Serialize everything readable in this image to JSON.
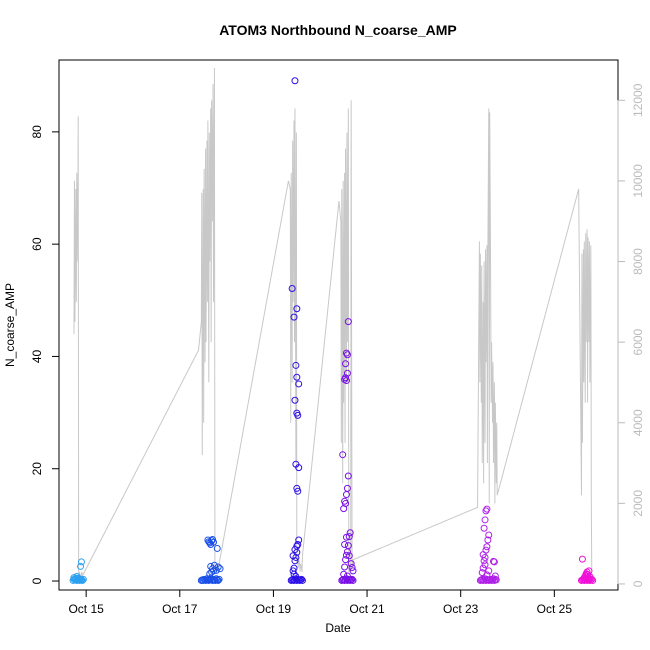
{
  "chart_data": {
    "type": "scatter",
    "title": "ATOM3 Northbound N_coarse_AMP",
    "xlabel": "Date",
    "ylabel": "N_coarse_AMP",
    "x_ticks": [
      {
        "value": 15,
        "label": "Oct 15"
      },
      {
        "value": 17,
        "label": "Oct 17"
      },
      {
        "value": 19,
        "label": "Oct 19"
      },
      {
        "value": 21,
        "label": "Oct 21"
      },
      {
        "value": 23,
        "label": "Oct 23"
      },
      {
        "value": 25,
        "label": "Oct 25"
      }
    ],
    "y_ticks": [
      0,
      20,
      40,
      60,
      80
    ],
    "y2_ticks": [
      0,
      2000,
      4000,
      6000,
      8000,
      10000,
      12000
    ],
    "xlim": [
      14.42,
      26.36
    ],
    "ylim": [
      -1.6,
      92.8
    ],
    "y2lim": [
      -150,
      13000
    ],
    "point_series": [
      {
        "color": "#2aa0f0",
        "x": [
          14.72,
          14.74,
          14.76,
          14.78,
          14.8,
          14.82,
          14.84,
          14.86,
          14.88,
          14.9,
          14.92,
          14.94,
          14.74,
          14.8,
          14.86,
          14.9,
          14.88,
          14.9,
          14.82,
          14.78
        ],
        "y": [
          0.1,
          0.3,
          0.2,
          0.5,
          0.1,
          0.2,
          0.4,
          0.1,
          0.3,
          0.2,
          0.1,
          0.3,
          0.6,
          0.8,
          0.4,
          0.2,
          2.6,
          3.4,
          0.5,
          0.3
        ]
      },
      {
        "color": "#1a50e8",
        "x": [
          17.46,
          17.48,
          17.5,
          17.52,
          17.54,
          17.56,
          17.58,
          17.6,
          17.62,
          17.64,
          17.66,
          17.68,
          17.7,
          17.72,
          17.74,
          17.76,
          17.78,
          17.8,
          17.82,
          17.84,
          17.6,
          17.62,
          17.64,
          17.66,
          17.68,
          17.7,
          17.72,
          17.66,
          17.7,
          17.8,
          17.64,
          17.68,
          17.74,
          17.78,
          17.82,
          17.86,
          17.72
        ],
        "y": [
          0.1,
          0.2,
          0.1,
          0.3,
          0.2,
          0.1,
          0.4,
          0.2,
          0.1,
          0.3,
          0.5,
          0.2,
          0.1,
          0.3,
          0.2,
          0.1,
          0.4,
          0.2,
          0.1,
          0.3,
          7.3,
          7.0,
          6.8,
          6.5,
          7.2,
          7.4,
          6.9,
          2.6,
          2.2,
          5.8,
          1.3,
          1.6,
          2.8,
          1.9,
          2.5,
          2.2,
          1.8
        ]
      },
      {
        "color": "#2c10e8",
        "x": [
          19.38,
          19.4,
          19.42,
          19.44,
          19.46,
          19.48,
          19.5,
          19.52,
          19.54,
          19.56,
          19.58,
          19.6,
          19.62,
          19.42,
          19.44,
          19.46,
          19.48,
          19.5,
          19.52,
          19.54,
          19.48,
          19.5,
          19.52,
          19.54,
          19.5,
          19.52,
          19.46,
          19.5,
          19.54,
          19.48,
          19.5,
          19.44,
          19.4,
          19.46,
          19.48,
          19.42,
          19.46,
          19.5,
          19.44
        ],
        "y": [
          0.1,
          0.2,
          0.3,
          0.1,
          0.2,
          0.4,
          0.1,
          0.3,
          0.2,
          0.1,
          0.2,
          0.3,
          0.1,
          1.8,
          2.3,
          3.6,
          4.2,
          5.1,
          6.5,
          7.3,
          20.8,
          16.5,
          16.0,
          20.2,
          29.9,
          29.5,
          32.2,
          36.3,
          35.1,
          38.4,
          48.5,
          47.0,
          52.1,
          89.1,
          0.8,
          4.5,
          5.6,
          6.2,
          1.2
        ]
      },
      {
        "color": "#7a10e8",
        "x": [
          20.46,
          20.48,
          20.5,
          20.52,
          20.54,
          20.56,
          20.58,
          20.6,
          20.62,
          20.64,
          20.66,
          20.68,
          20.7,
          20.5,
          20.52,
          20.54,
          20.56,
          20.58,
          20.6,
          20.62,
          20.64,
          20.5,
          20.52,
          20.54,
          20.56,
          20.58,
          20.6,
          20.48,
          20.52,
          20.54,
          20.56,
          20.58,
          20.54,
          20.56,
          20.58,
          20.6,
          20.52,
          20.56,
          20.62,
          20.66,
          20.68,
          20.7,
          20.58
        ],
        "y": [
          0.1,
          0.2,
          0.3,
          0.1,
          0.2,
          0.4,
          0.1,
          0.3,
          0.2,
          0.1,
          0.2,
          0.3,
          0.1,
          1.2,
          2.5,
          3.8,
          4.6,
          5.2,
          6.3,
          7.9,
          8.6,
          12.9,
          14.2,
          13.8,
          15.4,
          16.5,
          18.7,
          22.5,
          35.9,
          36.2,
          35.7,
          37.0,
          38.7,
          40.6,
          40.3,
          46.2,
          6.5,
          7.8,
          4.5,
          3.1,
          2.4,
          1.8,
          0.9
        ]
      },
      {
        "color": "#b020e8",
        "x": [
          23.42,
          23.44,
          23.46,
          23.48,
          23.5,
          23.52,
          23.54,
          23.56,
          23.58,
          23.6,
          23.62,
          23.64,
          23.66,
          23.68,
          23.7,
          23.72,
          23.74,
          23.76,
          23.46,
          23.48,
          23.5,
          23.52,
          23.54,
          23.56,
          23.58,
          23.6,
          23.5,
          23.52,
          23.54,
          23.56,
          23.48,
          23.52,
          23.7,
          23.72,
          23.74,
          23.56,
          23.6
        ],
        "y": [
          0.1,
          0.2,
          0.3,
          0.1,
          0.2,
          0.4,
          0.1,
          0.3,
          0.2,
          0.1,
          0.2,
          0.3,
          0.1,
          0.2,
          0.4,
          0.1,
          0.3,
          0.2,
          1.5,
          2.3,
          3.6,
          4.2,
          5.5,
          6.1,
          7.3,
          8.2,
          9.4,
          10.9,
          12.5,
          12.8,
          4.7,
          2.9,
          3.5,
          3.4,
          0.9,
          1.1,
          1.8
        ]
      },
      {
        "color": "#f010d8",
        "x": [
          25.58,
          25.6,
          25.62,
          25.64,
          25.66,
          25.68,
          25.7,
          25.72,
          25.74,
          25.76,
          25.78,
          25.8,
          25.82,
          25.64,
          25.66,
          25.68,
          25.7,
          25.72,
          25.74,
          25.76,
          25.6,
          25.66,
          25.7,
          25.74
        ],
        "y": [
          0.1,
          0.2,
          0.3,
          0.1,
          0.2,
          0.4,
          0.1,
          0.3,
          0.2,
          0.1,
          0.2,
          0.3,
          0.1,
          0.6,
          0.9,
          1.3,
          1.6,
          1.1,
          1.8,
          0.8,
          3.9,
          0.5,
          1.2,
          0.4
        ]
      }
    ],
    "line_series": {
      "color": "#c8c8c8",
      "axis": "right",
      "x": [
        14.74,
        14.75,
        14.76,
        14.78,
        14.79,
        14.8,
        14.82,
        14.83,
        14.84,
        14.86,
        14.87,
        14.88,
        14.9,
        14.91,
        14.92,
        17.4,
        17.46,
        17.47,
        17.48,
        17.5,
        17.51,
        17.52,
        17.54,
        17.55,
        17.56,
        17.58,
        17.59,
        17.6,
        17.62,
        17.63,
        17.64,
        17.66,
        17.67,
        17.68,
        17.7,
        17.71,
        17.72,
        17.74,
        17.75,
        17.76,
        17.78,
        17.79,
        17.8,
        17.82,
        17.83,
        17.84,
        19.32,
        19.36,
        19.37,
        19.38,
        19.4,
        19.41,
        19.42,
        19.44,
        19.45,
        19.46,
        19.48,
        19.49,
        19.5,
        19.52,
        19.53,
        19.54,
        19.56,
        19.57,
        19.58,
        19.6,
        19.61,
        19.62,
        20.4,
        20.44,
        20.45,
        20.46,
        20.48,
        20.49,
        20.5,
        20.52,
        20.53,
        20.54,
        20.56,
        20.57,
        20.58,
        20.6,
        20.61,
        20.62,
        20.64,
        20.65,
        20.66,
        20.68,
        20.69,
        20.7,
        23.36,
        23.4,
        23.41,
        23.42,
        23.44,
        23.45,
        23.46,
        23.48,
        23.49,
        23.5,
        23.52,
        23.53,
        23.54,
        23.56,
        23.57,
        23.58,
        23.6,
        23.61,
        23.62,
        23.64,
        23.65,
        23.66,
        23.68,
        23.69,
        23.7,
        23.72,
        23.73,
        23.74,
        23.76,
        23.77,
        23.78,
        25.52,
        25.58,
        25.59,
        25.6,
        25.62,
        25.63,
        25.64,
        25.66,
        25.67,
        25.68,
        25.7,
        25.71,
        25.72,
        25.74,
        25.75,
        25.76,
        25.78,
        25.79,
        25.8
      ],
      "y": [
        6200,
        10000,
        6500,
        9800,
        7000,
        10200,
        8000,
        11600,
        200,
        300,
        200,
        150,
        250,
        300,
        200,
        5800,
        6500,
        9700,
        3200,
        9800,
        4000,
        10300,
        5500,
        10800,
        6000,
        11000,
        7000,
        11500,
        5000,
        11200,
        8000,
        11800,
        6000,
        12000,
        9000,
        12400,
        7000,
        12800,
        500,
        300,
        400,
        300,
        500,
        400,
        300,
        500,
        10000,
        9800,
        4000,
        10200,
        5000,
        11000,
        7000,
        11500,
        6000,
        11800,
        3000,
        11200,
        500,
        700,
        400,
        600,
        500,
        300,
        500,
        400,
        300,
        700,
        9500,
        9000,
        3500,
        9800,
        2500,
        10000,
        4500,
        10200,
        3500,
        10800,
        5000,
        11200,
        6000,
        11800,
        300,
        400,
        500,
        300,
        12000,
        400,
        500,
        600,
        1900,
        8500,
        5000,
        8200,
        4500,
        7900,
        3000,
        7000,
        2500,
        8000,
        3500,
        8300,
        5500,
        8400,
        3000,
        8200,
        11800,
        2000,
        11700,
        7500,
        4500,
        6000,
        4000,
        5500,
        3000,
        5000,
        2000,
        4500,
        2500,
        4000,
        2200,
        9800,
        2200,
        8200,
        3500,
        8300,
        5000,
        8500,
        4500,
        8700,
        6000,
        8800,
        4500,
        8600,
        6000,
        8500,
        5000,
        8400,
        2000,
        300
      ]
    }
  }
}
